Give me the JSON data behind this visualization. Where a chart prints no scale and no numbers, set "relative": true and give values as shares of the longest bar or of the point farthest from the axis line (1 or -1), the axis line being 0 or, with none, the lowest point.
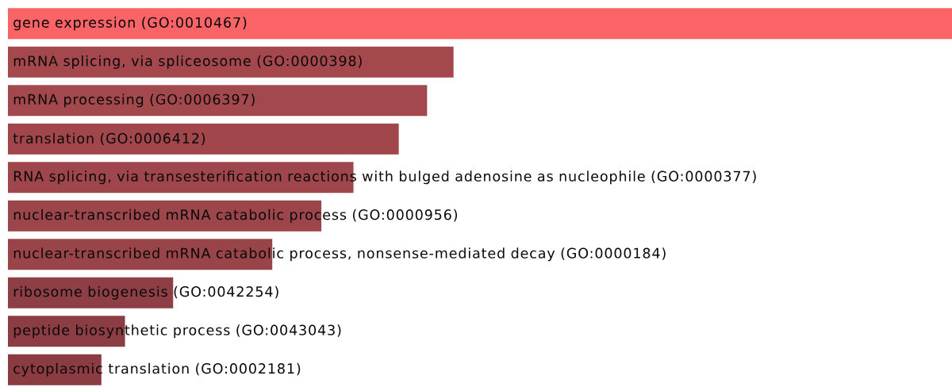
{
  "chart_data": {
    "type": "bar",
    "orientation": "horizontal",
    "relative": true,
    "categories": [
      "gene expression (GO:0010467)",
      "mRNA splicing, via spliceosome (GO:0000398)",
      "mRNA processing (GO:0006397)",
      "translation (GO:0006412)",
      "RNA splicing, via transesterification reactions with bulged adenosine as nucleophile (GO:0000377)",
      "nuclear-transcribed mRNA catabolic process (GO:0000956)",
      "nuclear-transcribed mRNA catabolic process, nonsense-mediated decay (GO:0000184)",
      "ribosome biogenesis (GO:0042254)",
      "peptide biosynthetic process (GO:0043043)",
      "cytoplasmic translation (GO:0002181)"
    ],
    "values": [
      1,
      0.472,
      0.444,
      0.414,
      0.366,
      0.332,
      0.28,
      0.175,
      0.124,
      0.099
    ],
    "colors": [
      "#fb6466",
      "#a4484d",
      "#a3484d",
      "#a1474c",
      "#9e464b",
      "#9c454a",
      "#984449",
      "#8e3f45",
      "#8b3d43",
      "#8a3c42"
    ]
  }
}
